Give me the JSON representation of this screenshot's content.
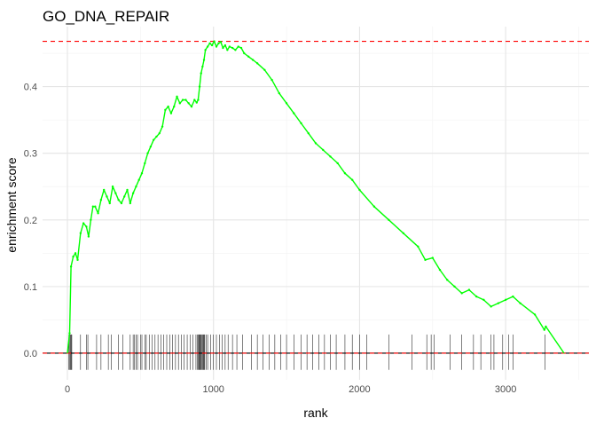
{
  "chart_data": {
    "type": "line",
    "title": "GO_DNA_REPAIR",
    "xlabel": "rank",
    "ylabel": "enrichment score",
    "xlim": [
      -170,
      3570
    ],
    "ylim": [
      -0.04,
      0.49
    ],
    "xticks": [
      0,
      1000,
      2000,
      3000
    ],
    "yticks": [
      0.0,
      0.1,
      0.2,
      0.3,
      0.4
    ],
    "ytick_labels": [
      "0.0",
      "0.1",
      "0.2",
      "0.3",
      "0.4"
    ],
    "grid": true,
    "max_es": 0.468,
    "colors": {
      "curve": "#00ff00",
      "reference": "#ff0000",
      "hits": "#000000"
    },
    "series": [
      {
        "values_x": [
          0,
          15,
          25,
          40,
          55,
          70,
          90,
          110,
          130,
          145,
          160,
          175,
          190,
          210,
          230,
          250,
          270,
          290,
          310,
          330,
          350,
          370,
          390,
          410,
          430,
          450,
          470,
          490,
          510,
          530,
          550,
          570,
          590,
          610,
          630,
          650,
          670,
          690,
          710,
          730,
          750,
          770,
          790,
          810,
          830,
          850,
          870,
          885,
          895,
          905,
          915,
          925,
          935,
          945,
          960,
          975,
          990,
          1005,
          1020,
          1035,
          1050,
          1065,
          1080,
          1095,
          1110,
          1130,
          1150,
          1170,
          1190,
          1210,
          1240,
          1270,
          1300,
          1350,
          1400,
          1450,
          1500,
          1550,
          1600,
          1650,
          1700,
          1750,
          1800,
          1850,
          1900,
          1950,
          2000,
          2100,
          2200,
          2300,
          2400,
          2450,
          2500,
          2550,
          2600,
          2650,
          2700,
          2750,
          2800,
          2850,
          2900,
          2950,
          3000,
          3050,
          3100,
          3200,
          3265,
          3275,
          3400
        ],
        "values_y": [
          0.0,
          0.03,
          0.13,
          0.145,
          0.15,
          0.14,
          0.18,
          0.195,
          0.19,
          0.175,
          0.2,
          0.22,
          0.22,
          0.21,
          0.23,
          0.245,
          0.235,
          0.225,
          0.25,
          0.24,
          0.23,
          0.225,
          0.235,
          0.245,
          0.225,
          0.24,
          0.25,
          0.26,
          0.27,
          0.285,
          0.3,
          0.31,
          0.32,
          0.325,
          0.33,
          0.34,
          0.365,
          0.37,
          0.36,
          0.37,
          0.385,
          0.375,
          0.38,
          0.38,
          0.375,
          0.37,
          0.38,
          0.376,
          0.38,
          0.4,
          0.42,
          0.43,
          0.44,
          0.455,
          0.46,
          0.465,
          0.462,
          0.468,
          0.46,
          0.465,
          0.467,
          0.458,
          0.462,
          0.455,
          0.46,
          0.458,
          0.455,
          0.46,
          0.458,
          0.45,
          0.445,
          0.44,
          0.435,
          0.425,
          0.41,
          0.39,
          0.375,
          0.36,
          0.345,
          0.33,
          0.315,
          0.305,
          0.295,
          0.285,
          0.27,
          0.26,
          0.245,
          0.22,
          0.2,
          0.18,
          0.16,
          0.14,
          0.143,
          0.125,
          0.11,
          0.1,
          0.09,
          0.095,
          0.085,
          0.08,
          0.07,
          0.075,
          0.08,
          0.085,
          0.075,
          0.058,
          0.035,
          0.04,
          0.0
        ]
      }
    ],
    "hit_ranks": [
      10,
      15,
      20,
      25,
      30,
      90,
      130,
      140,
      200,
      230,
      280,
      300,
      350,
      380,
      430,
      450,
      460,
      470,
      480,
      500,
      510,
      530,
      540,
      560,
      580,
      600,
      620,
      640,
      660,
      680,
      700,
      720,
      740,
      760,
      780,
      800,
      820,
      840,
      860,
      880,
      890,
      895,
      900,
      905,
      910,
      915,
      920,
      925,
      930,
      935,
      940,
      950,
      960,
      980,
      1000,
      1020,
      1040,
      1060,
      1080,
      1100,
      1130,
      1160,
      1200,
      1260,
      1300,
      1340,
      1380,
      1420,
      1460,
      1500,
      1550,
      1600,
      1640,
      1680,
      1720,
      1760,
      1800,
      1840,
      1900,
      1950,
      2000,
      2050,
      2200,
      2360,
      2460,
      2490,
      2510,
      2620,
      2700,
      2780,
      2830,
      2900,
      2920,
      2980,
      3020,
      3050,
      3270
    ]
  }
}
